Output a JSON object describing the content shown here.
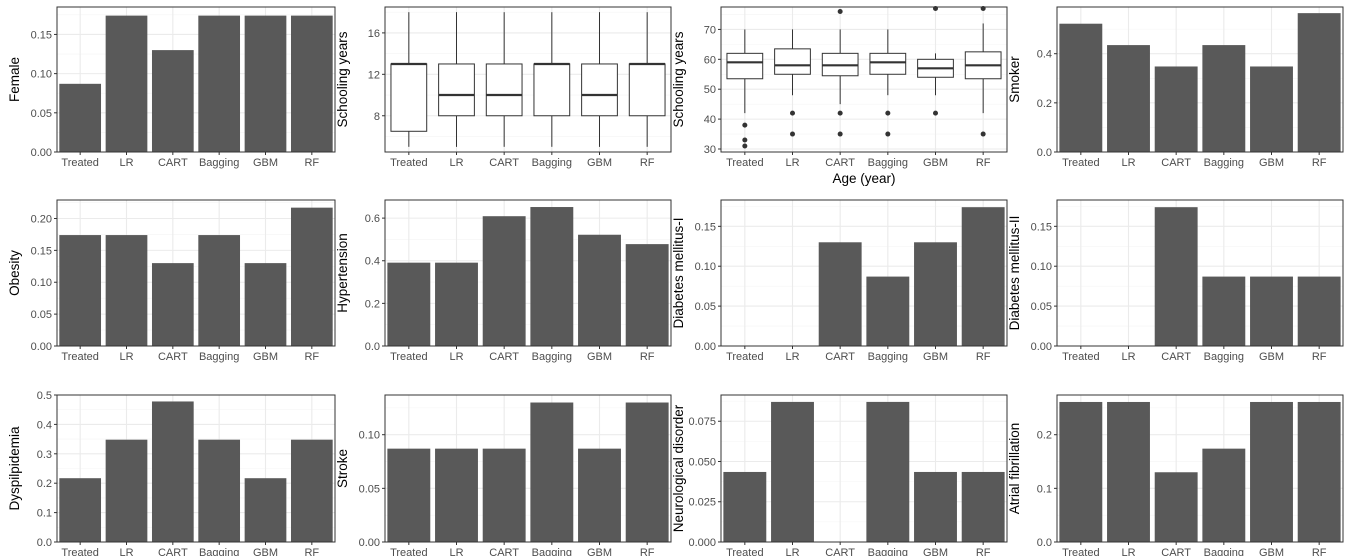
{
  "categories": [
    "Treated",
    "LR",
    "CART",
    "Bagging",
    "GBM",
    "RF"
  ],
  "colors": {
    "bar": "#595959",
    "grid_major": "#ebebeb",
    "grid_minor": "#f5f5f5",
    "frame": "#333333",
    "box_fill": "#ffffff",
    "box_line": "#333333"
  },
  "chart_data": [
    {
      "type": "bar",
      "ylabel": "Female",
      "xlabel": "",
      "ylim": [
        0,
        0.185
      ],
      "yticks": [
        0,
        0.05,
        0.1,
        0.15
      ],
      "ytick_labels": [
        "0.00",
        "0.05",
        "0.10",
        "0.15"
      ],
      "values": [
        0.087,
        0.174,
        0.13,
        0.174,
        0.174,
        0.174
      ]
    },
    {
      "type": "box",
      "ylabel": "Schooling years",
      "xlabel": "",
      "ylim": [
        4.5,
        18.5
      ],
      "yticks": [
        8,
        12,
        16
      ],
      "ytick_labels": [
        "8",
        "12",
        "16"
      ],
      "boxes": [
        {
          "min": 5,
          "q1": 6.5,
          "median": 13,
          "q3": 13,
          "max": 18,
          "outliers": []
        },
        {
          "min": 5,
          "q1": 8,
          "median": 10,
          "q3": 13,
          "max": 18,
          "outliers": []
        },
        {
          "min": 5,
          "q1": 8,
          "median": 10,
          "q3": 13,
          "max": 18,
          "outliers": []
        },
        {
          "min": 5,
          "q1": 8,
          "median": 13,
          "q3": 13,
          "max": 18,
          "outliers": []
        },
        {
          "min": 5,
          "q1": 8,
          "median": 10,
          "q3": 13,
          "max": 18,
          "outliers": []
        },
        {
          "min": 5,
          "q1": 8,
          "median": 13,
          "q3": 13,
          "max": 18,
          "outliers": []
        }
      ]
    },
    {
      "type": "box",
      "ylabel": "Schooling years",
      "xlabel": "Age (year)",
      "ylim": [
        29,
        77.5
      ],
      "yticks": [
        30,
        40,
        50,
        60,
        70
      ],
      "ytick_labels": [
        "30",
        "40",
        "50",
        "60",
        "70"
      ],
      "boxes": [
        {
          "min": 42,
          "q1": 53.5,
          "median": 59,
          "q3": 62,
          "max": 70,
          "outliers": [
            38,
            33,
            31
          ]
        },
        {
          "min": 48,
          "q1": 55,
          "median": 58,
          "q3": 63.5,
          "max": 70,
          "outliers": [
            42,
            35
          ]
        },
        {
          "min": 45,
          "q1": 54.5,
          "median": 58,
          "q3": 62,
          "max": 70,
          "outliers": [
            76,
            42,
            35
          ]
        },
        {
          "min": 48,
          "q1": 55,
          "median": 59,
          "q3": 62,
          "max": 70,
          "outliers": [
            42,
            35
          ]
        },
        {
          "min": 48,
          "q1": 54,
          "median": 57,
          "q3": 60,
          "max": 62,
          "outliers": [
            77,
            42
          ]
        },
        {
          "min": 42,
          "q1": 53.5,
          "median": 58,
          "q3": 62.5,
          "max": 72,
          "outliers": [
            77,
            35
          ]
        }
      ]
    },
    {
      "type": "bar",
      "ylabel": "Smoker",
      "xlabel": "",
      "ylim": [
        0,
        0.59
      ],
      "yticks": [
        0,
        0.2,
        0.4
      ],
      "ytick_labels": [
        "0.0",
        "0.2",
        "0.4"
      ],
      "values": [
        0.522,
        0.435,
        0.348,
        0.435,
        0.348,
        0.565
      ]
    },
    {
      "type": "bar",
      "ylabel": "Obesity",
      "xlabel": "",
      "ylim": [
        0,
        0.229
      ],
      "yticks": [
        0,
        0.05,
        0.1,
        0.15,
        0.2
      ],
      "ytick_labels": [
        "0.00",
        "0.05",
        "0.10",
        "0.15",
        "0.20"
      ],
      "values": [
        0.174,
        0.174,
        0.13,
        0.174,
        0.13,
        0.217
      ]
    },
    {
      "type": "bar",
      "ylabel": "Hypertension",
      "xlabel": "",
      "ylim": [
        0,
        0.685
      ],
      "yticks": [
        0,
        0.2,
        0.4,
        0.6
      ],
      "ytick_labels": [
        "0.0",
        "0.2",
        "0.4",
        "0.6"
      ],
      "values": [
        0.391,
        0.391,
        0.609,
        0.652,
        0.522,
        0.478
      ]
    },
    {
      "type": "bar",
      "ylabel": "Diabetes mellitus-I",
      "xlabel": "",
      "ylim": [
        0,
        0.183
      ],
      "yticks": [
        0,
        0.05,
        0.1,
        0.15
      ],
      "ytick_labels": [
        "0.00",
        "0.05",
        "0.10",
        "0.15"
      ],
      "values": [
        0,
        0,
        0.13,
        0.087,
        0.13,
        0.174
      ]
    },
    {
      "type": "bar",
      "ylabel": "Diabetes mellitus-II",
      "xlabel": "",
      "ylim": [
        0,
        0.183
      ],
      "yticks": [
        0,
        0.05,
        0.1,
        0.15
      ],
      "ytick_labels": [
        "0.00",
        "0.05",
        "0.10",
        "0.15"
      ],
      "values": [
        0,
        0,
        0.174,
        0.087,
        0.087,
        0.087
      ]
    },
    {
      "type": "bar",
      "ylabel": "Dyspilpidemia",
      "xlabel": "",
      "ylim": [
        0,
        0.5
      ],
      "yticks": [
        0,
        0.1,
        0.2,
        0.3,
        0.4,
        0.5
      ],
      "ytick_labels": [
        "0.0",
        "0.1",
        "0.2",
        "0.3",
        "0.4",
        "0.5"
      ],
      "values": [
        0.217,
        0.348,
        0.478,
        0.348,
        0.217,
        0.348
      ]
    },
    {
      "type": "bar",
      "ylabel": "Stroke",
      "xlabel": "",
      "ylim": [
        0,
        0.137
      ],
      "yticks": [
        0,
        0.05,
        0.1
      ],
      "ytick_labels": [
        "0.00",
        "0.05",
        "0.10"
      ],
      "values": [
        0.087,
        0.087,
        0.087,
        0.13,
        0.087,
        0.13
      ]
    },
    {
      "type": "bar",
      "ylabel": "Neurological disorder",
      "xlabel": "",
      "ylim": [
        0,
        0.0913
      ],
      "yticks": [
        0,
        0.025,
        0.05,
        0.075
      ],
      "ytick_labels": [
        "0.000",
        "0.025",
        "0.050",
        "0.075"
      ],
      "values": [
        0.0435,
        0.087,
        0,
        0.087,
        0.0435,
        0.0435
      ]
    },
    {
      "type": "bar",
      "ylabel": "Atrial fibrillation",
      "xlabel": "",
      "ylim": [
        0,
        0.274
      ],
      "yticks": [
        0,
        0.1,
        0.2
      ],
      "ytick_labels": [
        "0.0",
        "0.1",
        "0.2"
      ],
      "values": [
        0.261,
        0.261,
        0.13,
        0.174,
        0.261,
        0.261
      ]
    }
  ]
}
